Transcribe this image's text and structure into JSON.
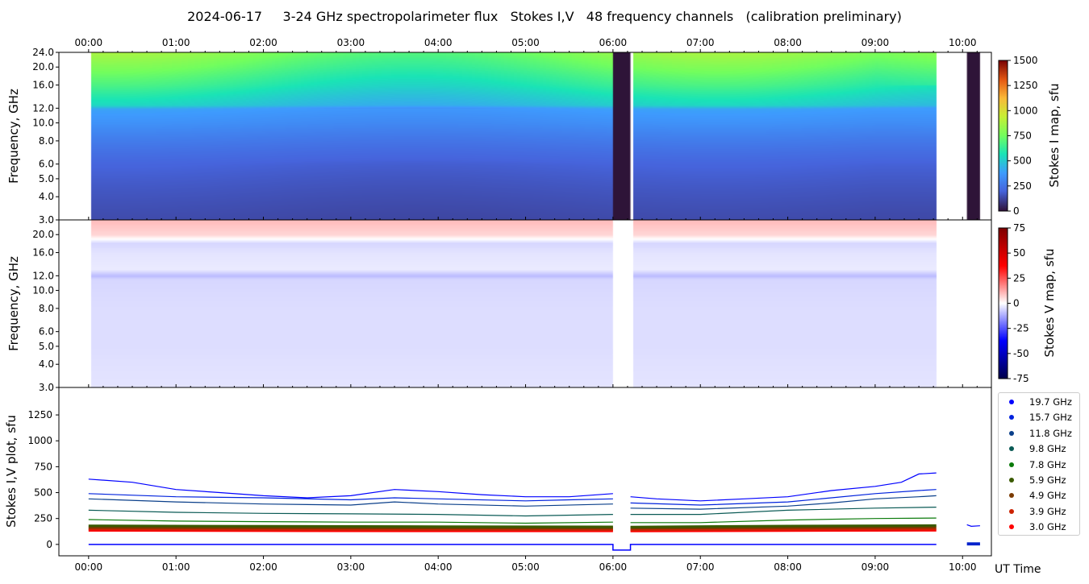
{
  "title": "2024-06-17     3-24 GHz spectropolarimeter flux   Stokes I,V   48 frequency channels   (calibration preliminary)",
  "chart_data": [
    {
      "type": "heatmap",
      "name": "Stokes I map",
      "ylabel": "Frequency, GHz",
      "yscale": "log",
      "ylim": [
        3,
        24
      ],
      "yticks": [
        "3.0",
        "4.0",
        "5.0",
        "6.0",
        "8.0",
        "10.0",
        "12.0",
        "16.0",
        "20.0",
        "24.0"
      ],
      "xticks": [
        "00:00",
        "01:00",
        "02:00",
        "03:00",
        "04:00",
        "05:00",
        "06:00",
        "07:00",
        "08:00",
        "09:00",
        "10:00"
      ],
      "xlim_hours": [
        -0.34,
        10.33
      ],
      "data_segments_hours": [
        [
          0,
          6.0
        ],
        [
          6.2,
          9.7
        ]
      ],
      "dark_segments_hours": [
        [
          6.0,
          6.2
        ],
        [
          10.05,
          10.2
        ]
      ],
      "colorbar": {
        "label": "Stokes I map, sfu",
        "range": [
          0,
          1500
        ],
        "ticks": [
          "0",
          "250",
          "500",
          "750",
          "1000",
          "1250",
          "1500"
        ]
      },
      "profile_freq_ghz": [
        3,
        4,
        5,
        6,
        8,
        10,
        12,
        12.5,
        16,
        20,
        24
      ],
      "profile_sfu": [
        130,
        150,
        170,
        190,
        260,
        330,
        380,
        480,
        600,
        700,
        780
      ]
    },
    {
      "type": "heatmap",
      "name": "Stokes V map",
      "ylabel": "Frequency, GHz",
      "yscale": "log",
      "ylim": [
        3,
        24
      ],
      "yticks": [
        "3.0",
        "4.0",
        "5.0",
        "6.0",
        "8.0",
        "10.0",
        "12.0",
        "16.0",
        "20.0"
      ],
      "colorbar": {
        "label": "Stokes V map, sfu",
        "range": [
          -75,
          75
        ],
        "ticks": [
          "-75",
          "-50",
          "-25",
          "0",
          "25",
          "50",
          "75"
        ]
      },
      "profile_freq_ghz": [
        3,
        5,
        8,
        11.5,
        12,
        13,
        16,
        18,
        20,
        22,
        24
      ],
      "profile_sfu": [
        -4,
        -5,
        -5,
        -6,
        -10,
        -3,
        -4,
        -6,
        6,
        8,
        10
      ]
    },
    {
      "type": "line",
      "name": "Stokes I,V plot",
      "ylabel": "Stokes I,V plot, sfu",
      "xlabel": "UT Time",
      "ylim": [
        -110,
        1515
      ],
      "yticks": [
        "0",
        "250",
        "500",
        "750",
        "1000",
        "1250"
      ],
      "xticks": [
        "00:00",
        "01:00",
        "02:00",
        "03:00",
        "04:00",
        "05:00",
        "06:00",
        "07:00",
        "08:00",
        "09:00",
        "10:00"
      ],
      "series": [
        {
          "name": "19.7 GHz",
          "color": "#0000ff",
          "t": [
            0,
            0.5,
            1,
            1.5,
            2,
            2.5,
            3,
            3.5,
            4,
            4.5,
            5,
            5.5,
            6,
            6.2,
            6.5,
            7,
            7.5,
            8,
            8.5,
            9,
            9.3,
            9.5,
            9.7
          ],
          "v": [
            630,
            600,
            530,
            500,
            470,
            450,
            470,
            530,
            510,
            480,
            460,
            460,
            490,
            460,
            440,
            420,
            440,
            460,
            520,
            560,
            600,
            680,
            690
          ]
        },
        {
          "name": "15.7 GHz",
          "color": "#0022dd",
          "t": [
            0,
            1,
            2,
            3,
            3.5,
            4,
            5,
            5.5,
            6,
            6.2,
            7,
            8,
            8.5,
            9,
            9.5,
            9.7
          ],
          "v": [
            490,
            460,
            450,
            430,
            450,
            440,
            420,
            430,
            440,
            400,
            380,
            410,
            450,
            490,
            520,
            530
          ]
        },
        {
          "name": "11.8 GHz",
          "color": "#0a3f8a",
          "t": [
            0,
            1,
            2,
            3,
            3.5,
            4,
            5,
            6,
            6.2,
            7,
            8,
            8.5,
            9,
            9.5,
            9.7
          ],
          "v": [
            440,
            410,
            390,
            380,
            410,
            390,
            370,
            390,
            350,
            340,
            370,
            400,
            440,
            460,
            470
          ]
        },
        {
          "name": "9.8 GHz",
          "color": "#0a5a55",
          "t": [
            0,
            1,
            2,
            3,
            4,
            5,
            6,
            6.2,
            7,
            8,
            9,
            9.7
          ],
          "v": [
            330,
            310,
            300,
            295,
            290,
            275,
            290,
            290,
            290,
            330,
            350,
            360
          ]
        },
        {
          "name": "7.8 GHz",
          "color": "#0a7a0a",
          "t": [
            0,
            1,
            2,
            3,
            4,
            5,
            6,
            6.2,
            7,
            8,
            9,
            9.7
          ],
          "v": [
            240,
            225,
            220,
            215,
            215,
            205,
            215,
            210,
            210,
            235,
            250,
            255
          ]
        },
        {
          "name": "5.9 GHz",
          "color": "#3a5a00",
          "t": [
            0,
            2,
            4,
            6,
            6.2,
            8,
            9.7
          ],
          "v": [
            180,
            175,
            172,
            170,
            168,
            178,
            182
          ]
        },
        {
          "name": "4.9 GHz",
          "color": "#7a3a00",
          "t": [
            0,
            2,
            4,
            6,
            6.2,
            8,
            9.7
          ],
          "v": [
            163,
            160,
            158,
            157,
            156,
            162,
            165
          ]
        },
        {
          "name": "3.9 GHz",
          "color": "#cc2200",
          "t": [
            0,
            2,
            4,
            6,
            6.2,
            8,
            9.7
          ],
          "v": [
            148,
            145,
            143,
            142,
            141,
            146,
            148
          ]
        },
        {
          "name": "3.0 GHz",
          "color": "#ff0000",
          "t": [
            0,
            2,
            4,
            6,
            6.2,
            8,
            9.7
          ],
          "v": [
            135,
            132,
            130,
            130,
            129,
            133,
            136
          ]
        }
      ],
      "late_segment": {
        "t": [
          10.05,
          10.1,
          10.2
        ],
        "v": [
          190,
          175,
          180
        ]
      },
      "stokes_v_near_zero": {
        "t": [
          0,
          6.0,
          6.0,
          6.2,
          6.2,
          9.7
        ],
        "v": [
          0,
          0,
          -55,
          -55,
          0,
          0
        ]
      }
    }
  ],
  "legend": [
    "19.7 GHz",
    "15.7 GHz",
    "11.8 GHz",
    "9.8 GHz",
    "7.8 GHz",
    "5.9 GHz",
    "4.9 GHz",
    "3.9 GHz",
    "3.0 GHz"
  ]
}
